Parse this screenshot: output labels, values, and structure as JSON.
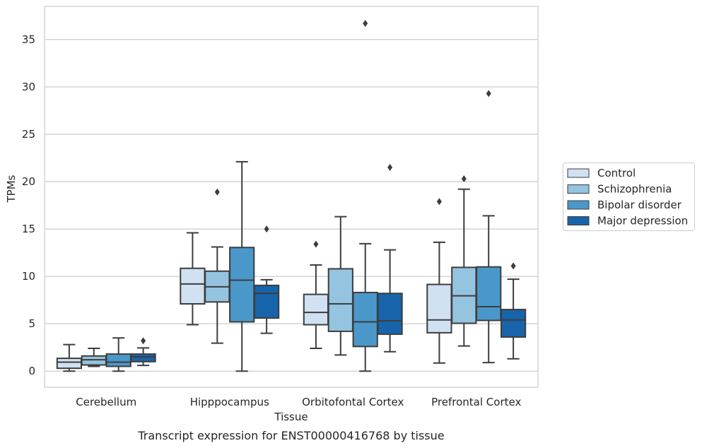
{
  "chart_data": {
    "type": "box",
    "title": "Transcript expression for ENST00000416768 by tissue",
    "xlabel": "Tissue",
    "ylabel": "TPMs",
    "ylim": [
      -1.7,
      38.5
    ],
    "yticks": [
      0,
      5,
      10,
      15,
      20,
      25,
      30,
      35
    ],
    "grid": "horizontal",
    "legend_position": "right",
    "categories": [
      "Cerebellum",
      "Hipppocampus",
      "Orbitofontal Cortex",
      "Prefrontal Cortex"
    ],
    "series": [
      {
        "name": "Control",
        "color": "#d0e1f2",
        "boxes": [
          {
            "whislo": 0.0,
            "q1": 0.3,
            "med": 0.95,
            "q3": 1.35,
            "whishi": 2.8,
            "fliers": []
          },
          {
            "whislo": 4.9,
            "q1": 7.1,
            "med": 9.2,
            "q3": 10.85,
            "whishi": 14.6,
            "fliers": []
          },
          {
            "whislo": 2.4,
            "q1": 4.9,
            "med": 6.2,
            "q3": 8.1,
            "whishi": 11.2,
            "fliers": [
              13.4
            ]
          },
          {
            "whislo": 0.85,
            "q1": 4.05,
            "med": 5.4,
            "q3": 9.15,
            "whishi": 13.6,
            "fliers": [
              17.9
            ]
          }
        ]
      },
      {
        "name": "Schizophrenia",
        "color": "#94c4df",
        "boxes": [
          {
            "whislo": 0.5,
            "q1": 0.65,
            "med": 1.2,
            "q3": 1.6,
            "whishi": 2.4,
            "fliers": []
          },
          {
            "whislo": 2.95,
            "q1": 7.3,
            "med": 8.9,
            "q3": 10.55,
            "whishi": 13.1,
            "fliers": [
              18.9
            ]
          },
          {
            "whislo": 1.7,
            "q1": 4.2,
            "med": 7.1,
            "q3": 10.8,
            "whishi": 16.3,
            "fliers": []
          },
          {
            "whislo": 2.65,
            "q1": 5.05,
            "med": 7.95,
            "q3": 10.95,
            "whishi": 19.2,
            "fliers": [
              20.3
            ]
          }
        ]
      },
      {
        "name": "Bipolar disorder",
        "color": "#4a98c9",
        "boxes": [
          {
            "whislo": 0.0,
            "q1": 0.5,
            "med": 0.95,
            "q3": 1.8,
            "whishi": 3.5,
            "fliers": []
          },
          {
            "whislo": 0.0,
            "q1": 5.2,
            "med": 9.6,
            "q3": 13.05,
            "whishi": 22.1,
            "fliers": []
          },
          {
            "whislo": 0.0,
            "q1": 2.6,
            "med": 5.2,
            "q3": 8.3,
            "whishi": 13.45,
            "fliers": [
              36.7
            ]
          },
          {
            "whislo": 0.9,
            "q1": 5.35,
            "med": 6.8,
            "q3": 11.0,
            "whishi": 16.4,
            "fliers": [
              29.3
            ]
          }
        ]
      },
      {
        "name": "Major depression",
        "color": "#1764ab",
        "boxes": [
          {
            "whislo": 0.6,
            "q1": 1.0,
            "med": 1.5,
            "q3": 1.8,
            "whishi": 2.45,
            "fliers": [
              3.2
            ]
          },
          {
            "whislo": 4.0,
            "q1": 5.6,
            "med": 8.2,
            "q3": 9.05,
            "whishi": 9.65,
            "fliers": [
              15.0
            ]
          },
          {
            "whislo": 2.05,
            "q1": 3.9,
            "med": 5.3,
            "q3": 8.2,
            "whishi": 12.8,
            "fliers": [
              21.5
            ]
          },
          {
            "whislo": 1.3,
            "q1": 3.6,
            "med": 5.4,
            "q3": 6.5,
            "whishi": 9.7,
            "fliers": [
              11.1
            ]
          }
        ]
      }
    ]
  }
}
